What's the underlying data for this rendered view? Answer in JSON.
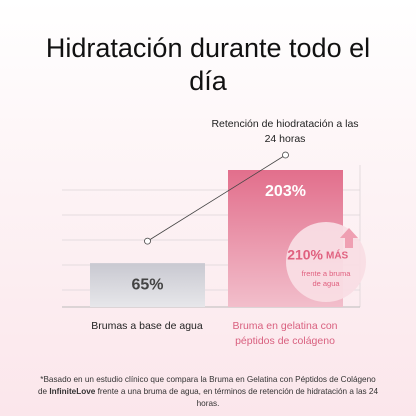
{
  "chart_data": {
    "type": "bar",
    "title": "Hidratación durante todo el día",
    "annotation": "Retención de hiodratación a las 24 horas",
    "categories": [
      "Brumas a base de agua",
      "Bruma en gelatina con péptidos de colágeno"
    ],
    "values": [
      65,
      203
    ],
    "value_labels": [
      "65%",
      "203%"
    ],
    "colors": [
      "#c9c9d1",
      "#e26f8c"
    ],
    "badge_value": "210%",
    "badge_label": "MÁS",
    "badge_note": "frente a bruma de agua",
    "footnote_before": "*Basado en un estudio clínico que compara la Bruma en Gelatina con Péptidos de Colágeno de",
    "footnote_brand": "InfiniteLove",
    "footnote_after": "frente a una bruma de agua, en términos de retención de hidratación a las 24 horas."
  }
}
